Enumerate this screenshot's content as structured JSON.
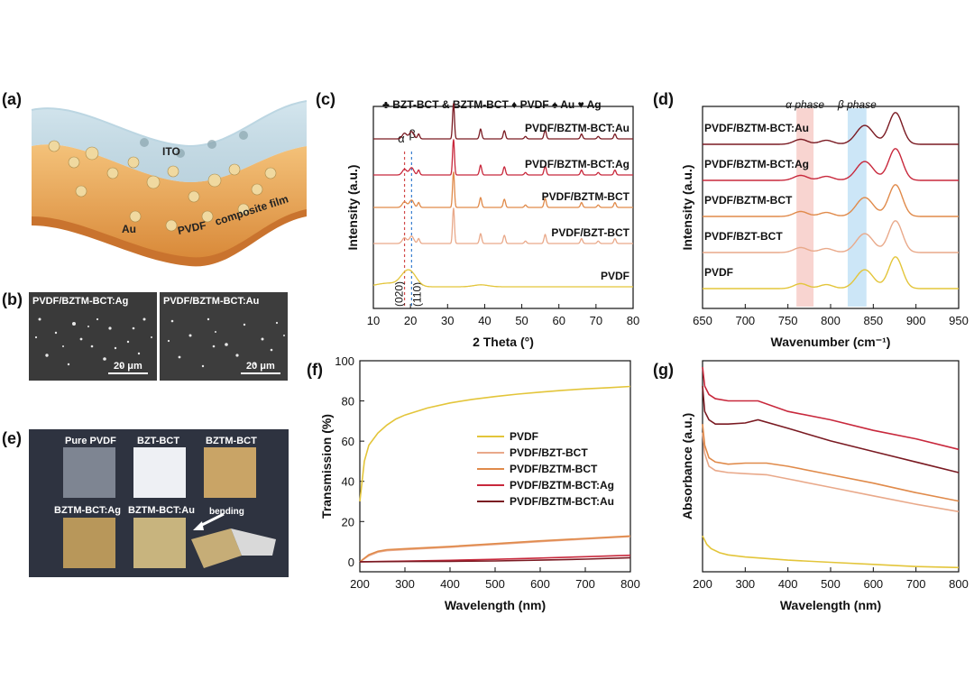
{
  "panels": {
    "a": "(a)",
    "b": "(b)",
    "c": "(c)",
    "d": "(d)",
    "e": "(e)",
    "f": "(f)",
    "g": "(g)"
  },
  "panel_a": {
    "ito": "ITO",
    "au": "Au",
    "pvdf": "PVDF",
    "composite": "composite film"
  },
  "panel_b": {
    "left_label": "PVDF/BZTM-BCT:Ag",
    "right_label": "PVDF/BZTM-BCT:Au",
    "left_scale": "20 μm",
    "right_scale": "20 μm"
  },
  "panel_e": {
    "labels": [
      "Pure PVDF",
      "BZT-BCT",
      "BZTM-BCT",
      "BZTM-BCT:Ag",
      "BZTM-BCT:Au",
      "bending"
    ]
  },
  "colors": {
    "PVDF": "#e3c53a",
    "PVDF/BZT-BCT": "#e9a98a",
    "PVDF/BZTM-BCT": "#e08a4a",
    "PVDF/BZTM-BCT:Ag": "#c8283c",
    "PVDF/BZTM-BCT:Au": "#7a1a22"
  },
  "chart_data": [
    {
      "id": "c",
      "type": "line",
      "xlabel": "2 Theta (°)",
      "ylabel": "Intensity (a.u.)",
      "xlim": [
        10,
        80
      ],
      "xticks": [
        10,
        20,
        30,
        40,
        50,
        60,
        70,
        80
      ],
      "legend_text": "♣ BZT-BCT & BZTM-BCT  ♦ PVDF  ♠ Au  ♥ Ag",
      "peak_markers_text": [
        "α",
        "β",
        "(020)",
        "(110)"
      ],
      "dashed_lines_x": [
        18.4,
        20.3
      ],
      "series": [
        {
          "name": "PVDF",
          "color_key": "PVDF",
          "offset": 0
        },
        {
          "name": "PVDF/BZT-BCT",
          "color_key": "PVDF/BZT-BCT",
          "offset": 1
        },
        {
          "name": "PVDF/BZTM-BCT",
          "color_key": "PVDF/BZTM-BCT",
          "offset": 2
        },
        {
          "name": "PVDF/BZTM-BCT:Ag",
          "color_key": "PVDF/BZTM-BCT:Ag",
          "offset": 3
        },
        {
          "name": "PVDF/BZTM-BCT:Au",
          "color_key": "PVDF/BZTM-BCT:Au",
          "offset": 4
        }
      ],
      "peaks": [
        {
          "x": 18.4,
          "h": 0.35,
          "w": 0.6
        },
        {
          "x": 20.3,
          "h": 0.45,
          "w": 0.6
        },
        {
          "x": 22.2,
          "h": 0.3,
          "w": 0.3
        },
        {
          "x": 31.6,
          "h": 2.2,
          "w": 0.25
        },
        {
          "x": 38.9,
          "h": 0.6,
          "w": 0.3
        },
        {
          "x": 45.3,
          "h": 0.5,
          "w": 0.3
        },
        {
          "x": 51.0,
          "h": 0.15,
          "w": 0.3
        },
        {
          "x": 56.3,
          "h": 0.55,
          "w": 0.3
        },
        {
          "x": 66.1,
          "h": 0.3,
          "w": 0.3
        },
        {
          "x": 70.6,
          "h": 0.15,
          "w": 0.3
        },
        {
          "x": 75.1,
          "h": 0.3,
          "w": 0.3
        }
      ]
    },
    {
      "id": "d",
      "type": "line",
      "xlabel": "Wavenumber (cm⁻¹)",
      "ylabel": "Intensity (a.u.)",
      "xlim": [
        650,
        950
      ],
      "xticks": [
        650,
        700,
        750,
        800,
        850,
        900,
        950
      ],
      "bands": [
        {
          "label": "α phase",
          "x0": 760,
          "x1": 780,
          "color": "#f6c9c4"
        },
        {
          "label": "β phase",
          "x0": 820,
          "x1": 842,
          "color": "#bfe0f5"
        }
      ],
      "series": [
        {
          "name": "PVDF",
          "color_key": "PVDF",
          "offset": 0
        },
        {
          "name": "PVDF/BZT-BCT",
          "color_key": "PVDF/BZT-BCT",
          "offset": 1
        },
        {
          "name": "PVDF/BZTM-BCT",
          "color_key": "PVDF/BZTM-BCT",
          "offset": 2
        },
        {
          "name": "PVDF/BZTM-BCT:Ag",
          "color_key": "PVDF/BZTM-BCT:Ag",
          "offset": 3
        },
        {
          "name": "PVDF/BZTM-BCT:Au",
          "color_key": "PVDF/BZTM-BCT:Au",
          "offset": 4
        }
      ],
      "peaks": [
        {
          "x": 765,
          "h": 0.25,
          "w": 8
        },
        {
          "x": 795,
          "h": 0.2,
          "w": 8
        },
        {
          "x": 840,
          "h": 0.95,
          "w": 10
        },
        {
          "x": 876,
          "h": 1.6,
          "w": 8
        }
      ]
    },
    {
      "id": "f",
      "type": "line",
      "xlabel": "Wavelength (nm)",
      "ylabel": "Transmission (%)",
      "xlim": [
        200,
        800
      ],
      "ylim": [
        -5,
        100
      ],
      "xticks": [
        200,
        300,
        400,
        500,
        600,
        700,
        800
      ],
      "yticks": [
        0,
        20,
        40,
        60,
        80,
        100
      ],
      "legend_placement": "center",
      "series": [
        {
          "name": "PVDF",
          "color_key": "PVDF",
          "x": [
            200,
            210,
            220,
            240,
            260,
            280,
            300,
            350,
            400,
            450,
            500,
            550,
            600,
            650,
            700,
            750,
            800
          ],
          "y": [
            30,
            50,
            58,
            64,
            68,
            71,
            73,
            76.5,
            79,
            80.8,
            82.2,
            83.4,
            84.4,
            85.3,
            86,
            86.6,
            87.2
          ]
        },
        {
          "name": "PVDF/BZT-BCT",
          "color_key": "PVDF/BZT-BCT",
          "x": [
            200,
            220,
            240,
            260,
            300,
            400,
            500,
            600,
            700,
            800
          ],
          "y": [
            0,
            3,
            4.8,
            5.5,
            6,
            7.2,
            8.6,
            10,
            11.3,
            12.5
          ]
        },
        {
          "name": "PVDF/BZTM-BCT",
          "color_key": "PVDF/BZTM-BCT",
          "x": [
            200,
            220,
            240,
            260,
            300,
            400,
            500,
            600,
            700,
            800
          ],
          "y": [
            0,
            3.5,
            5.2,
            6,
            6.5,
            7.6,
            9,
            10.4,
            11.6,
            12.8
          ]
        },
        {
          "name": "PVDF/BZTM-BCT:Ag",
          "color_key": "PVDF/BZTM-BCT:Ag",
          "x": [
            200,
            300,
            400,
            500,
            600,
            700,
            800
          ],
          "y": [
            0,
            0.3,
            0.7,
            1.2,
            1.8,
            2.5,
            3.2
          ]
        },
        {
          "name": "PVDF/BZTM-BCT:Au",
          "color_key": "PVDF/BZTM-BCT:Au",
          "x": [
            200,
            300,
            400,
            500,
            600,
            700,
            800
          ],
          "y": [
            0,
            0.1,
            0.2,
            0.4,
            0.8,
            1.3,
            2
          ]
        }
      ]
    },
    {
      "id": "g",
      "type": "line",
      "xlabel": "Wavelength (nm)",
      "ylabel": "Absorbance (a.u.)",
      "xlim": [
        200,
        800
      ],
      "ylim": [
        0,
        1
      ],
      "xticks": [
        200,
        300,
        400,
        500,
        600,
        700,
        800
      ],
      "series": [
        {
          "name": "PVDF",
          "color_key": "PVDF",
          "x": [
            200,
            210,
            220,
            240,
            260,
            300,
            400,
            500,
            600,
            700,
            800
          ],
          "y": [
            0.17,
            0.13,
            0.11,
            0.09,
            0.08,
            0.07,
            0.055,
            0.045,
            0.035,
            0.025,
            0.02
          ]
        },
        {
          "name": "PVDF/BZT-BCT",
          "color_key": "PVDF/BZT-BCT",
          "x": [
            200,
            205,
            215,
            230,
            260,
            300,
            350,
            400,
            500,
            600,
            700,
            800
          ],
          "y": [
            0.66,
            0.56,
            0.5,
            0.48,
            0.47,
            0.465,
            0.46,
            0.44,
            0.4,
            0.36,
            0.32,
            0.285
          ]
        },
        {
          "name": "PVDF/BZTM-BCT",
          "color_key": "PVDF/BZTM-BCT",
          "x": [
            200,
            205,
            215,
            230,
            260,
            300,
            350,
            400,
            500,
            600,
            700,
            800
          ],
          "y": [
            0.7,
            0.6,
            0.54,
            0.52,
            0.51,
            0.515,
            0.515,
            0.5,
            0.46,
            0.42,
            0.375,
            0.335
          ]
        },
        {
          "name": "PVDF/BZTM-BCT:Ag",
          "color_key": "PVDF/BZTM-BCT:Ag",
          "x": [
            200,
            205,
            215,
            230,
            260,
            300,
            330,
            400,
            500,
            600,
            700,
            800
          ],
          "y": [
            0.97,
            0.88,
            0.84,
            0.82,
            0.81,
            0.81,
            0.81,
            0.76,
            0.72,
            0.67,
            0.63,
            0.58
          ]
        },
        {
          "name": "PVDF/BZTM-BCT:Au",
          "color_key": "PVDF/BZTM-BCT:Au",
          "x": [
            200,
            205,
            215,
            230,
            260,
            300,
            330,
            400,
            500,
            600,
            700,
            800
          ],
          "y": [
            0.88,
            0.76,
            0.72,
            0.7,
            0.7,
            0.705,
            0.72,
            0.68,
            0.62,
            0.57,
            0.52,
            0.47
          ]
        }
      ]
    }
  ]
}
